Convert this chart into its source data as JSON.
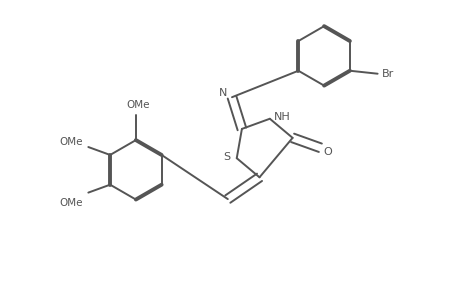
{
  "bg_color": "#ffffff",
  "line_color": "#555555",
  "bond_lw": 1.4,
  "bold_lw": 2.8,
  "dbo": 0.008,
  "figsize": [
    4.6,
    3.0
  ],
  "dpi": 100,
  "xlim": [
    0,
    4.6
  ],
  "ylim": [
    0,
    3.0
  ]
}
